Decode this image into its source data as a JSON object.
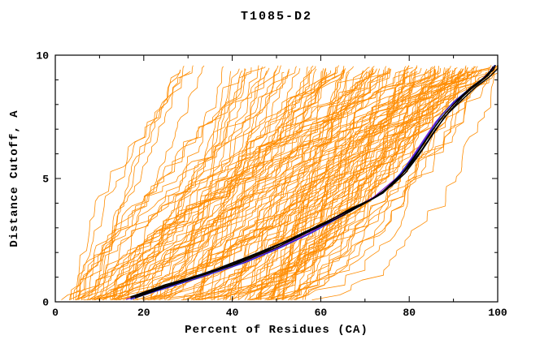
{
  "title": "T1085-D2",
  "axes": {
    "x": {
      "label": "Percent of Residues (CA)",
      "min": 0,
      "max": 100,
      "major_ticks": [
        0,
        20,
        40,
        60,
        80,
        100
      ],
      "minor_step": 10
    },
    "y": {
      "label": "Distance Cutoff, A",
      "min": 0,
      "max": 10,
      "major_ticks": [
        0,
        5,
        10
      ],
      "minor_step": 1
    }
  },
  "colors": {
    "ensemble": "#ff8c00",
    "top_models": "#000000",
    "model_blue": "#2222dd",
    "model_purple": "#8822cc",
    "frame": "#000000"
  },
  "chart_data": {
    "type": "line",
    "title": "T1085-D2",
    "xlabel": "Percent of Residues (CA)",
    "ylabel": "Distance Cutoff, A",
    "xlim": [
      0,
      100
    ],
    "ylim": [
      0,
      10
    ],
    "grid": false,
    "legend": "none",
    "series": [
      {
        "name": "predicted-models-ensemble",
        "color": "#ff8c00",
        "stroke_width": 0.8,
        "generator": {
          "count": 140,
          "seed": 1085,
          "x_start_min": 3,
          "x_start_max": 55,
          "x_start_bias": 1.6,
          "min_span": 12,
          "x_end_max": 100,
          "x_end_bias": 0.75,
          "shape_exp_min": 0.3,
          "shape_exp_max": 1.7,
          "y_top_min": 9.3,
          "y_top_max": 9.6,
          "y_step": 0.2,
          "wiggle": 5
        }
      },
      {
        "name": "model-purple",
        "color": "#8822cc",
        "stroke_width": 1.2,
        "curves": [
          [
            [
              16,
              0.1
            ],
            [
              23,
              0.45
            ],
            [
              32,
              0.95
            ],
            [
              42,
              1.55
            ],
            [
              50,
              2.15
            ],
            [
              57,
              2.75
            ],
            [
              63,
              3.35
            ],
            [
              68,
              3.85
            ],
            [
              72,
              4.25
            ],
            [
              75,
              4.7
            ],
            [
              78,
              5.15
            ],
            [
              80,
              5.7
            ],
            [
              83,
              6.5
            ],
            [
              86,
              7.3
            ],
            [
              89,
              7.9
            ],
            [
              93,
              8.5
            ],
            [
              96,
              8.95
            ],
            [
              98,
              9.3
            ],
            [
              99,
              9.55
            ]
          ]
        ]
      },
      {
        "name": "model-blue",
        "color": "#2222dd",
        "stroke_width": 1.2,
        "curves": [
          [
            [
              17,
              0.1
            ],
            [
              24,
              0.5
            ],
            [
              33,
              1.0
            ],
            [
              43,
              1.6
            ],
            [
              51,
              2.2
            ],
            [
              58,
              2.8
            ],
            [
              64,
              3.4
            ],
            [
              69,
              3.9
            ],
            [
              73,
              4.3
            ],
            [
              76,
              4.8
            ],
            [
              78,
              5.2
            ],
            [
              81,
              5.9
            ],
            [
              84,
              6.7
            ],
            [
              87,
              7.5
            ],
            [
              90,
              8.1
            ],
            [
              94,
              8.7
            ],
            [
              97,
              9.1
            ],
            [
              99,
              9.45
            ],
            [
              99.3,
              9.6
            ]
          ]
        ]
      },
      {
        "name": "top-models-black",
        "color": "#000000",
        "stroke_width": 1.4,
        "curves": [
          [
            [
              17,
              0.15
            ],
            [
              22,
              0.5
            ],
            [
              30,
              0.9
            ],
            [
              40,
              1.5
            ],
            [
              48,
              2.1
            ],
            [
              56,
              2.8
            ],
            [
              63,
              3.4
            ],
            [
              69,
              3.9
            ],
            [
              73,
              4.3
            ],
            [
              76,
              4.8
            ],
            [
              79,
              5.3
            ],
            [
              81,
              5.8
            ],
            [
              84,
              6.6
            ],
            [
              87,
              7.4
            ],
            [
              90,
              8.0
            ],
            [
              93,
              8.5
            ],
            [
              96,
              8.9
            ],
            [
              98,
              9.2
            ],
            [
              99,
              9.55
            ]
          ],
          [
            [
              18,
              0.15
            ],
            [
              24,
              0.55
            ],
            [
              32,
              1.0
            ],
            [
              42,
              1.6
            ],
            [
              50,
              2.2
            ],
            [
              58,
              2.9
            ],
            [
              65,
              3.5
            ],
            [
              70,
              4.0
            ],
            [
              74,
              4.4
            ],
            [
              77,
              4.9
            ],
            [
              80,
              5.5
            ],
            [
              83,
              6.2
            ],
            [
              86,
              7.0
            ],
            [
              89,
              7.7
            ],
            [
              92,
              8.3
            ],
            [
              95,
              8.8
            ],
            [
              97,
              9.1
            ],
            [
              99,
              9.4
            ],
            [
              99.5,
              9.6
            ]
          ],
          [
            [
              17,
              0.2
            ],
            [
              25,
              0.7
            ],
            [
              35,
              1.2
            ],
            [
              45,
              1.9
            ],
            [
              53,
              2.5
            ],
            [
              60,
              3.1
            ],
            [
              66,
              3.7
            ],
            [
              71,
              4.1
            ],
            [
              75,
              4.6
            ],
            [
              78,
              5.1
            ],
            [
              80,
              5.6
            ],
            [
              82,
              6.1
            ],
            [
              85,
              6.9
            ],
            [
              88,
              7.6
            ],
            [
              91,
              8.2
            ],
            [
              94,
              8.7
            ],
            [
              97,
              9.1
            ],
            [
              99,
              9.5
            ]
          ],
          [
            [
              18,
              0.2
            ],
            [
              26,
              0.7
            ],
            [
              36,
              1.3
            ],
            [
              46,
              2.0
            ],
            [
              54,
              2.6
            ],
            [
              61,
              3.2
            ],
            [
              67,
              3.8
            ],
            [
              72,
              4.2
            ],
            [
              76,
              4.7
            ],
            [
              79,
              5.2
            ],
            [
              82,
              5.9
            ],
            [
              85,
              6.7
            ],
            [
              88,
              7.5
            ],
            [
              92,
              8.2
            ],
            [
              95,
              8.7
            ],
            [
              98,
              9.1
            ],
            [
              100,
              9.45
            ],
            [
              100,
              9.6
            ]
          ]
        ]
      }
    ]
  }
}
